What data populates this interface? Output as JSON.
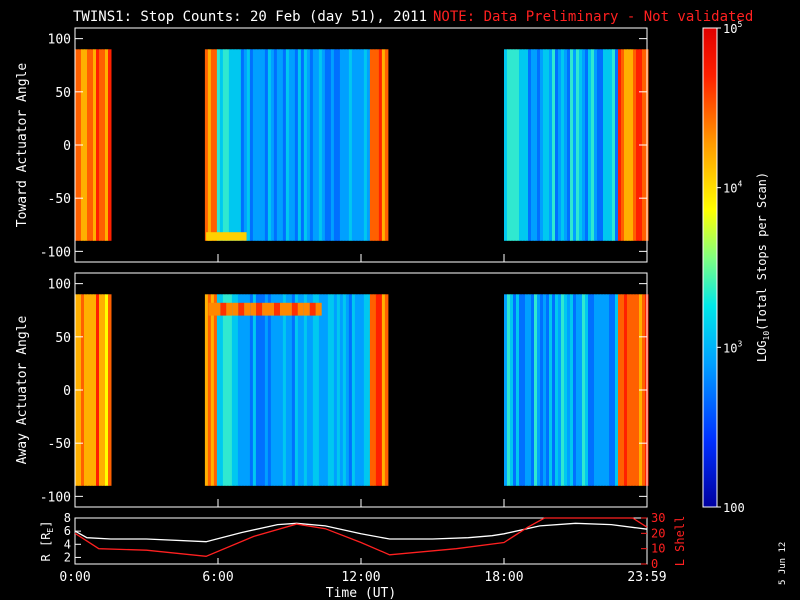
{
  "header": {
    "title": "TWINS1: Stop Counts: 20 Feb (day  51), 2011",
    "note": "NOTE: Data Preliminary - Not validated"
  },
  "footer": {
    "date_stamp": "5 Jun 12"
  },
  "chart_data": [
    {
      "type": "heatmap",
      "ylabel": "Toward Actuator Angle",
      "ylim": [
        -110,
        110
      ],
      "yticks": [
        100,
        50,
        0,
        -50,
        -100
      ],
      "x_range_hours": [
        0,
        24
      ],
      "data_y_range": [
        -90,
        90
      ],
      "data_blocks_hours": [
        [
          0.0,
          1.45
        ],
        [
          5.45,
          13.1
        ],
        [
          18.0,
          24.0
        ]
      ],
      "color_scale": "LOG10",
      "features": [
        "orange-red edges at block boundaries",
        "cyan/blue interior 5.5-13 UT",
        "banded cyan/blue 18-24 UT"
      ]
    },
    {
      "type": "heatmap",
      "ylabel": "Away Actuator Angle",
      "ylim": [
        -110,
        110
      ],
      "yticks": [
        100,
        50,
        0,
        -50,
        -100
      ],
      "x_range_hours": [
        0,
        24
      ],
      "data_y_range": [
        -90,
        90
      ],
      "data_blocks_hours": [
        [
          0.0,
          1.45
        ],
        [
          5.45,
          13.1
        ],
        [
          18.0,
          24.0
        ]
      ],
      "color_scale": "LOG10",
      "features": [
        "orange-red band near +80 deg 6-10 UT",
        "cyan/blue interior",
        "banded cyan/blue 18-24 UT"
      ]
    },
    {
      "type": "line",
      "xlabel": "Time (UT)",
      "ylabel": "R [R",
      "ylabel_sub": "E",
      "ylabel_end": "]",
      "ylim": [
        1,
        8
      ],
      "yticks": [
        8,
        6,
        4,
        2
      ],
      "y2label": "L Shell",
      "y2lim": [
        0,
        30
      ],
      "y2ticks": [
        30,
        20,
        10,
        0
      ],
      "xticks": [
        "0:00",
        "6:00",
        "12:00",
        "18:00",
        "23:59"
      ],
      "xtick_hours": [
        0,
        6,
        12,
        18,
        24
      ],
      "series": [
        {
          "axis": "left",
          "color": "#ffffff",
          "x": [
            0,
            0.5,
            1.5,
            3,
            5.5,
            7,
            8.5,
            9.3,
            10.5,
            12,
            13.2,
            15,
            16.5,
            17.5,
            18,
            19.5,
            21,
            22.5,
            24
          ],
          "y": [
            6.0,
            5.0,
            4.8,
            4.8,
            4.4,
            5.8,
            7.0,
            7.2,
            6.8,
            5.6,
            4.8,
            4.8,
            5.0,
            5.3,
            5.6,
            6.8,
            7.2,
            7.0,
            6.3
          ]
        },
        {
          "axis": "right",
          "color": "#ff2020",
          "x": [
            0,
            1,
            3,
            5.5,
            7.5,
            9.3,
            10.5,
            12,
            13.2,
            16,
            18,
            19,
            19.7,
            20.0,
            23.0,
            23.4,
            24
          ],
          "y": [
            20,
            10,
            9,
            5,
            18,
            26,
            23,
            14,
            6,
            10,
            14,
            24,
            30,
            33,
            33,
            30,
            24
          ]
        }
      ]
    }
  ],
  "colorbar": {
    "label_prefix": "LOG",
    "label_sub": "10",
    "label_suffix": "(Total Stops per Scan)",
    "ticks": [
      {
        "value": 100000,
        "base": "10",
        "exp": "5"
      },
      {
        "value": 10000,
        "base": "10",
        "exp": "4"
      },
      {
        "value": 1000,
        "base": "10",
        "exp": "3"
      },
      {
        "value": 100,
        "base": "100",
        "exp": ""
      }
    ],
    "range": [
      100,
      100000
    ],
    "colors": [
      "#0000a0",
      "#0030ff",
      "#00a0ff",
      "#00e8e8",
      "#80ff80",
      "#ffff00",
      "#ff9900",
      "#ff2000",
      "#e00000"
    ]
  }
}
